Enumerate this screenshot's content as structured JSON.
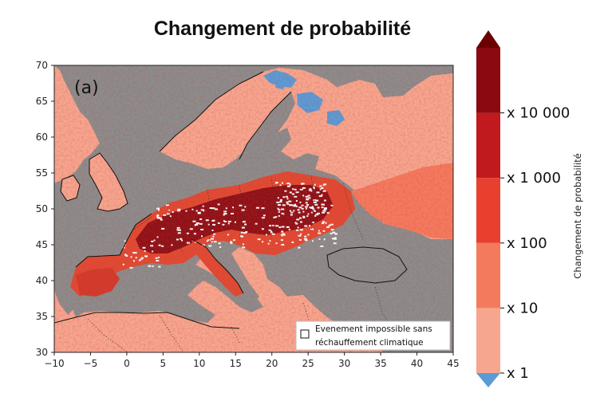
{
  "title": "Changement de probabilité",
  "panel_label": "(a)",
  "legend": {
    "line1": "Evenement impossible sans",
    "line2": "réchauffement climatique"
  },
  "colorbar": {
    "label": "Changement de probabilité",
    "ticks": [
      "x 1",
      "x 10",
      "x 100",
      "x 1 000",
      "x 10 000"
    ],
    "colors": {
      "under": "#5b9bd5",
      "bins": [
        "#f6a58e",
        "#f47a5e",
        "#e8402f",
        "#c01a1e",
        "#8b0a12"
      ],
      "over": "#6b0000"
    }
  },
  "map": {
    "land_background_color": "#f6a58e",
    "mask_color": "#8c8c8c",
    "core_color": "#c42a20",
    "hot_color": "#e04a33",
    "hottest_color": "#8f1218"
  },
  "chart_data": {
    "type": "heatmap",
    "title": "Changement de probabilité",
    "x_ticks": [
      "−10",
      "−5",
      "0",
      "5",
      "10",
      "15",
      "20",
      "25",
      "30",
      "35",
      "40",
      "45"
    ],
    "y_ticks": [
      "30",
      "35",
      "40",
      "45",
      "50",
      "55",
      "60",
      "65",
      "70"
    ],
    "xlim": [
      -10,
      45
    ],
    "ylim": [
      30,
      70
    ],
    "colorbar_label": "Changement de probabilité",
    "colorbar_scale": "log",
    "colorbar_levels": [
      1,
      10,
      100,
      1000,
      10000
    ]
  }
}
